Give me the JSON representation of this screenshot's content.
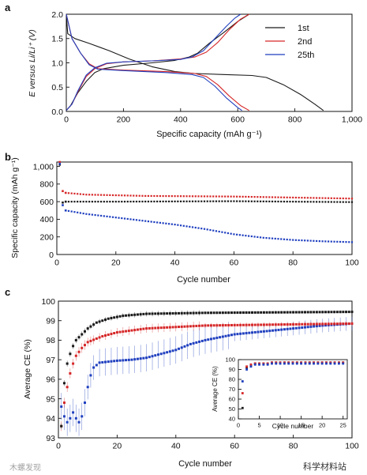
{
  "chart_data": [
    {
      "panel": "a",
      "type": "line",
      "xlabel": "Specific capacity (mAh g⁻¹)",
      "ylabel": "E versus Li/Li⁺ (V)",
      "xlim": [
        0,
        1000
      ],
      "ylim": [
        0,
        2.0
      ],
      "xticks": [
        0,
        200,
        400,
        600,
        800,
        1000
      ],
      "xticklabels": [
        "0",
        "200",
        "400",
        "600",
        "800",
        "1,000"
      ],
      "yticks": [
        0,
        0.5,
        1.0,
        1.5,
        2.0
      ],
      "yticklabels": [
        "0.0",
        "0.5",
        "1.0",
        "1.5",
        "2.0"
      ],
      "legend_position": "top-right",
      "series": [
        {
          "name": "1st",
          "color": "#1a1a1a",
          "discharge": [
            [
              0,
              2.0
            ],
            [
              5,
              1.6
            ],
            [
              30,
              1.5
            ],
            [
              80,
              1.4
            ],
            [
              150,
              1.25
            ],
            [
              220,
              1.08
            ],
            [
              300,
              0.92
            ],
            [
              380,
              0.82
            ],
            [
              450,
              0.78
            ],
            [
              550,
              0.76
            ],
            [
              650,
              0.74
            ],
            [
              700,
              0.7
            ],
            [
              760,
              0.55
            ],
            [
              820,
              0.35
            ],
            [
              870,
              0.15
            ],
            [
              900,
              0.02
            ]
          ],
          "charge": [
            [
              0,
              0.02
            ],
            [
              15,
              0.12
            ],
            [
              40,
              0.38
            ],
            [
              70,
              0.62
            ],
            [
              100,
              0.8
            ],
            [
              130,
              0.88
            ],
            [
              200,
              0.95
            ],
            [
              300,
              1.0
            ],
            [
              380,
              1.05
            ],
            [
              430,
              1.12
            ],
            [
              460,
              1.2
            ],
            [
              500,
              1.4
            ],
            [
              550,
              1.62
            ],
            [
              600,
              1.85
            ],
            [
              640,
              2.0
            ]
          ]
        },
        {
          "name": "2nd",
          "color": "#d62728",
          "discharge": [
            [
              0,
              2.0
            ],
            [
              20,
              1.5
            ],
            [
              50,
              1.2
            ],
            [
              80,
              0.98
            ],
            [
              110,
              0.88
            ],
            [
              200,
              0.85
            ],
            [
              350,
              0.82
            ],
            [
              450,
              0.78
            ],
            [
              490,
              0.72
            ],
            [
              530,
              0.55
            ],
            [
              570,
              0.32
            ],
            [
              610,
              0.12
            ],
            [
              640,
              0.02
            ]
          ],
          "charge": [
            [
              0,
              0.02
            ],
            [
              20,
              0.15
            ],
            [
              40,
              0.4
            ],
            [
              70,
              0.72
            ],
            [
              100,
              0.88
            ],
            [
              140,
              0.98
            ],
            [
              200,
              1.02
            ],
            [
              300,
              1.04
            ],
            [
              400,
              1.08
            ],
            [
              450,
              1.12
            ],
            [
              490,
              1.22
            ],
            [
              530,
              1.42
            ],
            [
              570,
              1.68
            ],
            [
              610,
              1.9
            ],
            [
              640,
              2.0
            ]
          ]
        },
        {
          "name": "25th",
          "color": "#1f3fbf",
          "discharge": [
            [
              0,
              2.0
            ],
            [
              20,
              1.5
            ],
            [
              50,
              1.2
            ],
            [
              80,
              0.96
            ],
            [
              110,
              0.87
            ],
            [
              200,
              0.84
            ],
            [
              350,
              0.8
            ],
            [
              440,
              0.76
            ],
            [
              480,
              0.7
            ],
            [
              520,
              0.52
            ],
            [
              560,
              0.28
            ],
            [
              600,
              0.08
            ],
            [
              615,
              0.02
            ]
          ],
          "charge": [
            [
              0,
              0.02
            ],
            [
              20,
              0.15
            ],
            [
              40,
              0.42
            ],
            [
              70,
              0.75
            ],
            [
              100,
              0.9
            ],
            [
              140,
              0.99
            ],
            [
              200,
              1.02
            ],
            [
              300,
              1.04
            ],
            [
              400,
              1.07
            ],
            [
              440,
              1.12
            ],
            [
              480,
              1.25
            ],
            [
              520,
              1.5
            ],
            [
              560,
              1.75
            ],
            [
              590,
              1.92
            ],
            [
              610,
              2.0
            ]
          ]
        }
      ]
    },
    {
      "panel": "b",
      "type": "scatter",
      "xlabel": "Cycle number",
      "ylabel": "Specific capacity (mAh g⁻¹)",
      "xlim": [
        0,
        100
      ],
      "ylim": [
        0,
        1050
      ],
      "xticks": [
        0,
        20,
        40,
        60,
        80,
        100
      ],
      "yticks": [
        0,
        200,
        400,
        600,
        800,
        1000
      ],
      "yticklabels": [
        "0",
        "200",
        "400",
        "600",
        "800",
        "1,000"
      ],
      "series": [
        {
          "color": "#d62728",
          "first": [
            [
              1,
              1050
            ],
            [
              2,
              720
            ],
            [
              3,
              700
            ]
          ],
          "trend": [
            [
              3,
              700
            ],
            [
              10,
              680
            ],
            [
              30,
              665
            ],
            [
              60,
              658
            ],
            [
              100,
              635
            ]
          ]
        },
        {
          "color": "#1a1a1a",
          "first": [
            [
              1,
              1020
            ],
            [
              2,
              590
            ],
            [
              3,
              600
            ]
          ],
          "trend": [
            [
              3,
              600
            ],
            [
              20,
              600
            ],
            [
              60,
              605
            ],
            [
              100,
              595
            ]
          ]
        },
        {
          "color": "#1f3fbf",
          "first": [
            [
              1,
              1030
            ],
            [
              2,
              560
            ],
            [
              3,
              500
            ]
          ],
          "trend": [
            [
              3,
              500
            ],
            [
              10,
              460
            ],
            [
              20,
              420
            ],
            [
              30,
              380
            ],
            [
              40,
              340
            ],
            [
              50,
              290
            ],
            [
              60,
              230
            ],
            [
              70,
              190
            ],
            [
              80,
              165
            ],
            [
              90,
              150
            ],
            [
              100,
              140
            ]
          ]
        }
      ]
    },
    {
      "panel": "c",
      "type": "scatter",
      "xlabel": "Cycle number",
      "ylabel": "Average CE (%)",
      "xlim": [
        0,
        100
      ],
      "ylim": [
        93,
        100
      ],
      "xticks": [
        0,
        20,
        40,
        60,
        80,
        100
      ],
      "yticks": [
        93,
        94,
        95,
        96,
        97,
        98,
        99,
        100
      ],
      "series": [
        {
          "color": "#1a1a1a",
          "values": [
            [
              1,
              93.6
            ],
            [
              2,
              95.8
            ],
            [
              3,
              96.8
            ],
            [
              4,
              97.3
            ],
            [
              5,
              97.7
            ],
            [
              6,
              98.0
            ],
            [
              8,
              98.3
            ],
            [
              10,
              98.6
            ],
            [
              13,
              98.9
            ],
            [
              17,
              99.1
            ],
            [
              22,
              99.25
            ],
            [
              30,
              99.35
            ],
            [
              50,
              99.4
            ],
            [
              100,
              99.45
            ]
          ],
          "error": 0.15
        },
        {
          "color": "#d62728",
          "values": [
            [
              1,
              93.6
            ],
            [
              2,
              94.8
            ],
            [
              3,
              95.6
            ],
            [
              4,
              96.3
            ],
            [
              5,
              96.8
            ],
            [
              6,
              97.2
            ],
            [
              8,
              97.6
            ],
            [
              10,
              97.9
            ],
            [
              15,
              98.2
            ],
            [
              20,
              98.4
            ],
            [
              30,
              98.6
            ],
            [
              50,
              98.75
            ],
            [
              100,
              98.85
            ]
          ],
          "error": 0.25
        },
        {
          "color": "#1f3fbf",
          "values": [
            [
              1,
              94.6
            ],
            [
              2,
              94.1
            ],
            [
              3,
              93.8
            ],
            [
              4,
              94.0
            ],
            [
              5,
              94.3
            ],
            [
              6,
              94.0
            ],
            [
              7,
              93.8
            ],
            [
              8,
              94.1
            ],
            [
              9,
              94.8
            ],
            [
              10,
              95.6
            ],
            [
              11,
              96.2
            ],
            [
              12,
              96.6
            ],
            [
              14,
              96.85
            ],
            [
              20,
              96.95
            ],
            [
              25,
              97.0
            ],
            [
              30,
              97.1
            ],
            [
              35,
              97.3
            ],
            [
              40,
              97.5
            ],
            [
              45,
              97.8
            ],
            [
              50,
              98.0
            ],
            [
              60,
              98.3
            ],
            [
              70,
              98.45
            ],
            [
              80,
              98.6
            ],
            [
              90,
              98.75
            ],
            [
              100,
              98.85
            ]
          ],
          "error": 0.7
        }
      ],
      "inset": {
        "xlabel": "Cycle number",
        "ylabel": "Average CE (%)",
        "xlim": [
          0,
          26
        ],
        "ylim": [
          40,
          100
        ],
        "xticks": [
          0,
          5,
          10,
          15,
          20,
          25
        ],
        "yticks": [
          40,
          50,
          60,
          70,
          80,
          90,
          100
        ],
        "series": [
          {
            "color": "#1a1a1a",
            "values": [
              [
                1,
                51
              ],
              [
                2,
                92
              ],
              [
                3,
                94
              ]
            ],
            "plateau": 97
          },
          {
            "color": "#d62728",
            "values": [
              [
                1,
                66
              ],
              [
                2,
                93
              ],
              [
                3,
                95
              ]
            ],
            "plateau": 97
          },
          {
            "color": "#1f3fbf",
            "values": [
              [
                1,
                78
              ],
              [
                2,
                90
              ],
              [
                3,
                93
              ]
            ],
            "plateau": 96
          }
        ]
      }
    }
  ],
  "panels": {
    "a": {
      "letter": "a",
      "legend": [
        "1st",
        "2nd",
        "25th"
      ]
    },
    "b": {
      "letter": "b"
    },
    "c": {
      "letter": "c"
    }
  },
  "watermark_left": "木螺发现",
  "watermark_right": "科学材料站"
}
